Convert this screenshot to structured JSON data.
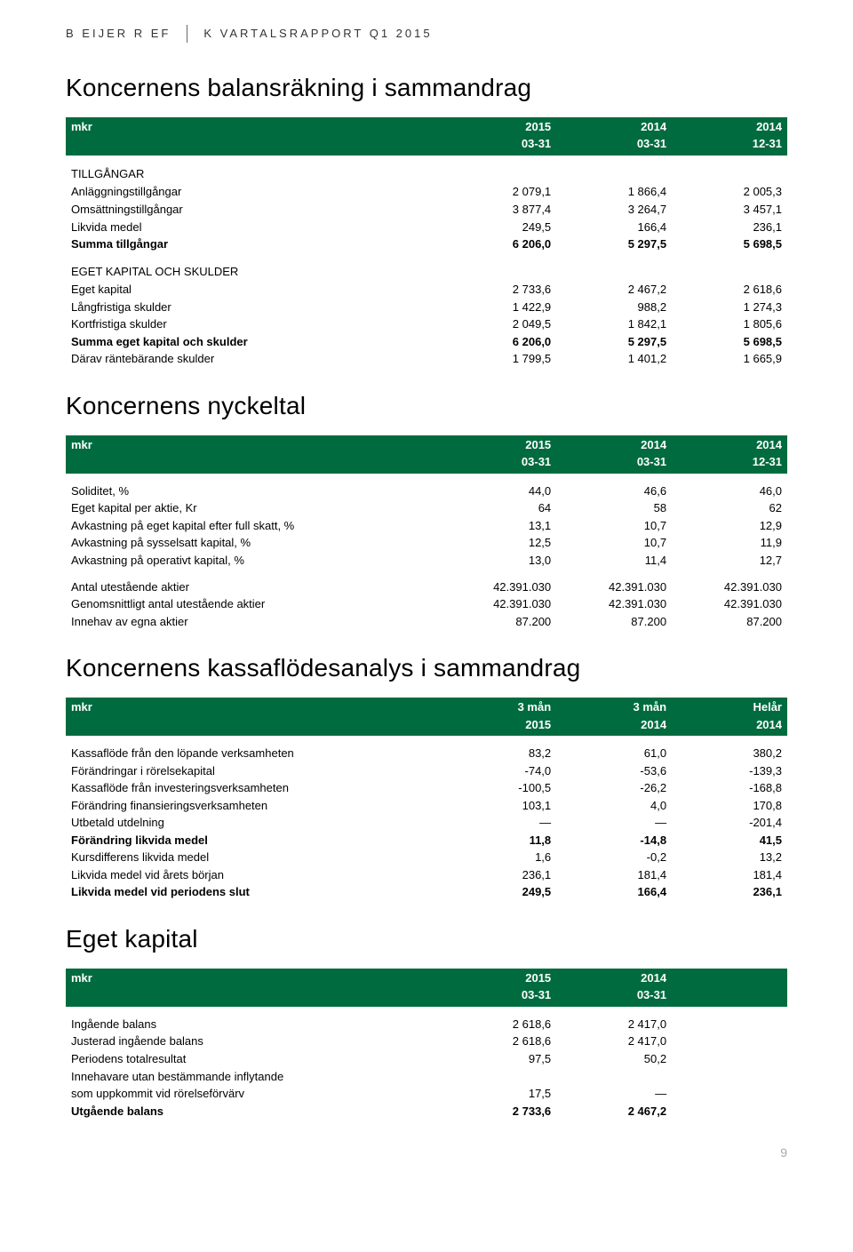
{
  "header": {
    "left": "B EIJER  R EF",
    "right": "K VARTALSRAPPORT  Q1 2015"
  },
  "page_number": "9",
  "colors": {
    "header_bg": "#006b3f",
    "header_fg": "#ffffff"
  },
  "balance": {
    "title": "Koncernens balansräkning i sammandrag",
    "cols": {
      "label": "mkr",
      "c1": "2015",
      "c2": "2014",
      "c3": "2014",
      "s1": "03-31",
      "s2": "03-31",
      "s3": "12-31"
    },
    "section1": "TILLGÅNGAR",
    "rows1": [
      {
        "l": "Anläggningstillgångar",
        "v": [
          "2 079,1",
          "1 866,4",
          "2 005,3"
        ]
      },
      {
        "l": "Omsättningstillgångar",
        "v": [
          "3 877,4",
          "3 264,7",
          "3 457,1"
        ]
      },
      {
        "l": "Likvida medel",
        "v": [
          "249,5",
          "166,4",
          "236,1"
        ]
      },
      {
        "l": "Summa tillgångar",
        "v": [
          "6 206,0",
          "5 297,5",
          "5 698,5"
        ],
        "bold": true
      }
    ],
    "section2": "EGET KAPITAL OCH SKULDER",
    "rows2": [
      {
        "l": "Eget kapital",
        "v": [
          "2 733,6",
          "2 467,2",
          "2 618,6"
        ]
      },
      {
        "l": "Långfristiga skulder",
        "v": [
          "1 422,9",
          "988,2",
          "1 274,3"
        ]
      },
      {
        "l": "Kortfristiga skulder",
        "v": [
          "2 049,5",
          "1 842,1",
          "1 805,6"
        ]
      },
      {
        "l": "Summa eget kapital och skulder",
        "v": [
          "6 206,0",
          "5 297,5",
          "5 698,5"
        ],
        "bold": true
      },
      {
        "l": "Därav räntebärande skulder",
        "v": [
          "1 799,5",
          "1 401,2",
          "1 665,9"
        ]
      }
    ]
  },
  "keyfig": {
    "title": "Koncernens nyckeltal",
    "cols": {
      "label": "mkr",
      "c1": "2015",
      "c2": "2014",
      "c3": "2014",
      "s1": "03-31",
      "s2": "03-31",
      "s3": "12-31"
    },
    "rows1": [
      {
        "l": "Soliditet, %",
        "v": [
          "44,0",
          "46,6",
          "46,0"
        ]
      },
      {
        "l": "Eget kapital per aktie, Kr",
        "v": [
          "64",
          "58",
          "62"
        ]
      },
      {
        "l": "Avkastning på eget kapital efter full skatt, %",
        "v": [
          "13,1",
          "10,7",
          "12,9"
        ]
      },
      {
        "l": "Avkastning på sysselsatt kapital, %",
        "v": [
          "12,5",
          "10,7",
          "11,9"
        ]
      },
      {
        "l": "Avkastning på operativt kapital, %",
        "v": [
          "13,0",
          "11,4",
          "12,7"
        ]
      }
    ],
    "rows2": [
      {
        "l": "Antal utestående aktier",
        "v": [
          "42.391.030",
          "42.391.030",
          "42.391.030"
        ]
      },
      {
        "l": "Genomsnittligt antal utestående aktier",
        "v": [
          "42.391.030",
          "42.391.030",
          "42.391.030"
        ]
      },
      {
        "l": "Innehav av egna aktier",
        "v": [
          "87.200",
          "87.200",
          "87.200"
        ]
      }
    ]
  },
  "cashflow": {
    "title": "Koncernens kassaflödesanalys i sammandrag",
    "cols": {
      "label": "mkr",
      "c1": "3 mån",
      "c2": "3 mån",
      "c3": "Helår",
      "s1": "2015",
      "s2": "2014",
      "s3": "2014"
    },
    "rows": [
      {
        "l": "Kassaflöde från den löpande verksamheten",
        "v": [
          "83,2",
          "61,0",
          "380,2"
        ]
      },
      {
        "l": "Förändringar i rörelsekapital",
        "v": [
          "-74,0",
          "-53,6",
          "-139,3"
        ]
      },
      {
        "l": "Kassaflöde från investeringsverksamheten",
        "v": [
          "-100,5",
          "-26,2",
          "-168,8"
        ]
      },
      {
        "l": "Förändring finansieringsverksamheten",
        "v": [
          "103,1",
          "4,0",
          "170,8"
        ]
      },
      {
        "l": "Utbetald utdelning",
        "v": [
          "—",
          "—",
          "-201,4"
        ]
      },
      {
        "l": "Förändring likvida medel",
        "v": [
          "11,8",
          "-14,8",
          "41,5"
        ],
        "bold": true
      },
      {
        "l": "Kursdifferens likvida medel",
        "v": [
          "1,6",
          "-0,2",
          "13,2"
        ]
      },
      {
        "l": "Likvida medel vid årets början",
        "v": [
          "236,1",
          "181,4",
          "181,4"
        ]
      },
      {
        "l": "Likvida medel vid periodens slut",
        "v": [
          "249,5",
          "166,4",
          "236,1"
        ],
        "bold": true
      }
    ]
  },
  "equity": {
    "title": "Eget kapital",
    "cols": {
      "label": "mkr",
      "c1": "2015",
      "c2": "2014",
      "s1": "03-31",
      "s2": "03-31"
    },
    "rows": [
      {
        "l": "Ingående balans",
        "v": [
          "2 618,6",
          "2 417,0"
        ]
      },
      {
        "l": "Justerad ingående balans",
        "v": [
          "2 618,6",
          "2 417,0"
        ]
      },
      {
        "l": "Periodens totalresultat",
        "v": [
          "97,5",
          "50,2"
        ]
      },
      {
        "l": "Innehavare utan bestämmande inflytande",
        "v": [
          "",
          ""
        ]
      },
      {
        "l": "som uppkommit vid rörelseförvärv",
        "v": [
          "17,5",
          "—"
        ]
      },
      {
        "l": "Utgående balans",
        "v": [
          "2 733,6",
          "2 467,2"
        ],
        "bold": true
      }
    ]
  }
}
